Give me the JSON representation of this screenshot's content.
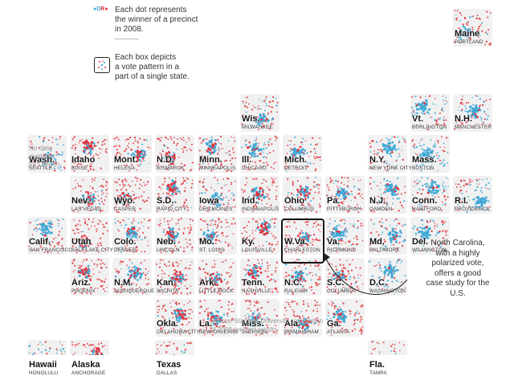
{
  "legend": {
    "dot_labels": {
      "d": "D",
      "r": "R"
    },
    "dots_text": [
      "Each dot represents",
      "the winner of a precinct",
      "in 2008."
    ],
    "box_text": [
      "Each box depicts",
      "a vote pattern in a",
      "part of a single state."
    ]
  },
  "oregon_note": [
    "No data",
    "available",
    "for Oregon."
  ],
  "nc_annotation": [
    "North Carolina,",
    "with a highly",
    "polarized vote,",
    "offers a good",
    "case study for the",
    "U.S."
  ],
  "source_note": [
    "Source: Stanford University compilation",
    "of 2008 precinct results."
  ],
  "colors": {
    "democrat": "#3fa9d6",
    "republican": "#e2333c",
    "tile_bg": "#f1f1f1"
  },
  "states": [
    {
      "abbr": "Maine",
      "city": "Portland",
      "col": 10,
      "row": 0,
      "d": 0.45
    },
    {
      "abbr": "Wis.",
      "city": "Milwaukee",
      "col": 5,
      "row": 1,
      "d": 0.5
    },
    {
      "abbr": "Vt.",
      "city": "Burlington",
      "col": 9,
      "row": 1,
      "d": 0.7
    },
    {
      "abbr": "N.H.",
      "city": "Manchester",
      "col": 10,
      "row": 1,
      "d": 0.5
    },
    {
      "abbr": "Wash.",
      "city": "Seattle",
      "col": 0,
      "row": 2,
      "d": 0.6
    },
    {
      "abbr": "Idaho",
      "city": "Boise",
      "col": 1,
      "row": 2,
      "d": 0.1
    },
    {
      "abbr": "Mont.",
      "city": "Helena",
      "col": 2,
      "row": 2,
      "d": 0.15
    },
    {
      "abbr": "N.D.",
      "city": "Bismarck",
      "col": 3,
      "row": 2,
      "d": 0.15
    },
    {
      "abbr": "Minn.",
      "city": "Minneapolis",
      "col": 4,
      "row": 2,
      "d": 0.35
    },
    {
      "abbr": "Ill.",
      "city": "Chicago",
      "col": 5,
      "row": 2,
      "d": 0.4
    },
    {
      "abbr": "Mich.",
      "city": "Detroit",
      "col": 6,
      "row": 2,
      "d": 0.45
    },
    {
      "abbr": "N.Y.",
      "city": "New York City",
      "col": 8,
      "row": 2,
      "d": 0.55
    },
    {
      "abbr": "Mass.",
      "city": "Boston",
      "col": 9,
      "row": 2,
      "d": 0.7
    },
    {
      "abbr": "Nev.",
      "city": "Las Vegas",
      "col": 1,
      "row": 3,
      "d": 0.25
    },
    {
      "abbr": "Wyo.",
      "city": "Casper",
      "col": 2,
      "row": 3,
      "d": 0.08
    },
    {
      "abbr": "S.D.",
      "city": "Rapid City",
      "col": 3,
      "row": 3,
      "d": 0.12
    },
    {
      "abbr": "Iowa",
      "city": "Des Moines",
      "col": 4,
      "row": 3,
      "d": 0.5
    },
    {
      "abbr": "Ind.",
      "city": "Indianapolis",
      "col": 5,
      "row": 3,
      "d": 0.25
    },
    {
      "abbr": "Ohio",
      "city": "Columbus",
      "col": 6,
      "row": 3,
      "d": 0.35
    },
    {
      "abbr": "Pa.",
      "city": "Pittsburgh",
      "col": 7,
      "row": 3,
      "d": 0.3
    },
    {
      "abbr": "N.J.",
      "city": "Camden",
      "col": 8,
      "row": 3,
      "d": 0.45
    },
    {
      "abbr": "Conn.",
      "city": "Hartford",
      "col": 9,
      "row": 3,
      "d": 0.65
    },
    {
      "abbr": "R.I.",
      "city": "Providence",
      "col": 10,
      "row": 3,
      "d": 0.75
    },
    {
      "abbr": "Calif.",
      "city": "San Francisco",
      "col": 0,
      "row": 4,
      "d": 0.55
    },
    {
      "abbr": "Utah",
      "city": "Salt Lake City",
      "col": 1,
      "row": 4,
      "d": 0.08
    },
    {
      "abbr": "Colo.",
      "city": "Denver",
      "col": 2,
      "row": 4,
      "d": 0.45
    },
    {
      "abbr": "Neb.",
      "city": "Lincoln",
      "col": 3,
      "row": 4,
      "d": 0.08
    },
    {
      "abbr": "Mo.",
      "city": "St. Louis",
      "col": 4,
      "row": 4,
      "d": 0.2
    },
    {
      "abbr": "Ky.",
      "city": "Louisville",
      "col": 5,
      "row": 4,
      "d": 0.1
    },
    {
      "abbr": "W.Va.",
      "city": "Charleston",
      "col": 6,
      "row": 4,
      "d": 0.12
    },
    {
      "abbr": "Va.",
      "city": "Richmond",
      "col": 7,
      "row": 4,
      "d": 0.4
    },
    {
      "abbr": "Md.",
      "city": "Baltimore",
      "col": 8,
      "row": 4,
      "d": 0.5
    },
    {
      "abbr": "Del.",
      "city": "Wilmington",
      "col": 9,
      "row": 4,
      "d": 0.6
    },
    {
      "abbr": "Ariz.",
      "city": "Phoenix",
      "col": 1,
      "row": 5,
      "d": 0.2
    },
    {
      "abbr": "N.M.",
      "city": "Albuquerque",
      "col": 2,
      "row": 5,
      "d": 0.3
    },
    {
      "abbr": "Kan.",
      "city": "Wichita",
      "col": 3,
      "row": 5,
      "d": 0.12
    },
    {
      "abbr": "Ark.",
      "city": "Little Rock",
      "col": 4,
      "row": 5,
      "d": 0.15
    },
    {
      "abbr": "Tenn.",
      "city": "Nashville",
      "col": 5,
      "row": 5,
      "d": 0.15
    },
    {
      "abbr": "N.C.",
      "city": "Raleigh",
      "col": 6,
      "row": 5,
      "d": 0.35
    },
    {
      "abbr": "S.C.",
      "city": "Columbia",
      "col": 7,
      "row": 5,
      "d": 0.3
    },
    {
      "abbr": "D.C.",
      "city": "Washington",
      "col": 8,
      "row": 5,
      "d": 0.8
    },
    {
      "abbr": "Okla.",
      "city": "Oklahoma City",
      "col": 3,
      "row": 6,
      "d": 0.06
    },
    {
      "abbr": "La.",
      "city": "New Orleans",
      "col": 4,
      "row": 6,
      "d": 0.3
    },
    {
      "abbr": "Miss.",
      "city": "Jackson",
      "col": 5,
      "row": 6,
      "d": 0.25
    },
    {
      "abbr": "Ala.",
      "city": "Birmingham",
      "col": 6,
      "row": 6,
      "d": 0.2
    },
    {
      "abbr": "Ga.",
      "city": "Atlanta",
      "col": 7,
      "row": 6,
      "d": 0.3
    },
    {
      "abbr": "Hawaii",
      "city": "Honolulu",
      "col": 0,
      "row": 7,
      "d": 0.9
    },
    {
      "abbr": "Alaska",
      "city": "Anchorage",
      "col": 1,
      "row": 7,
      "d": 0.1
    },
    {
      "abbr": "Texas",
      "city": "Dallas",
      "col": 3,
      "row": 7,
      "d": 0.3
    },
    {
      "abbr": "Fla.",
      "city": "Tampa",
      "col": 8,
      "row": 7,
      "d": 0.4
    }
  ]
}
